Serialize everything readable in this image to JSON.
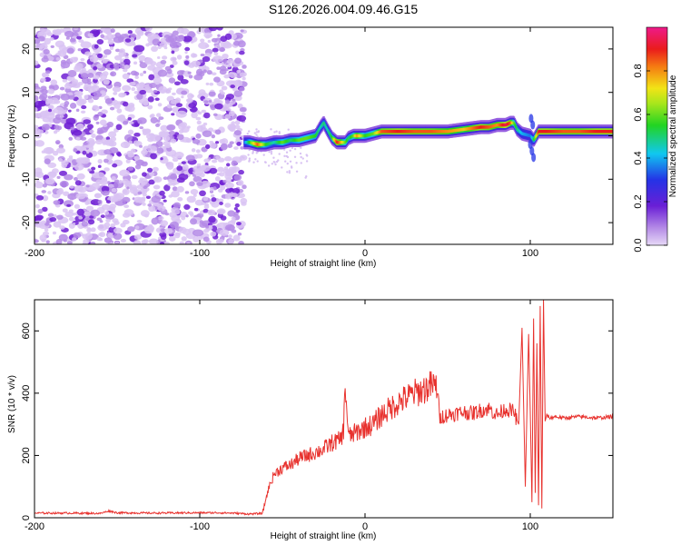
{
  "title": "S126.2026.004.09.46.G15",
  "colors": {
    "snr_line": "#e8322e",
    "waterfall_background": "#ffffff",
    "noise_light": "#d9c3f3",
    "noise_mid": "#b48ae6",
    "noise_dark": "#6f1fd3"
  },
  "chart_data": [
    {
      "id": "spectrogram",
      "type": "heatmap",
      "xlabel": "Height of straight line (km)",
      "ylabel": "Frequency (Hz)",
      "xlim": [
        -200,
        150
      ],
      "ylim": [
        -25,
        25
      ],
      "xticks": [
        -200,
        -100,
        0,
        100
      ],
      "yticks": [
        -20,
        -10,
        0,
        10,
        20
      ],
      "grid": false,
      "colorbar": {
        "label": "Normalized spectral amplitude",
        "range": [
          0,
          1
        ],
        "ticks": [
          0.0,
          0.2,
          0.4,
          0.6,
          0.8
        ],
        "colormap": "hsv-like: lilac, purple, blue, cyan, green, yellow, orange, red, magenta"
      },
      "noise_region_x": [
        -200,
        -73
      ],
      "ridge": {
        "x": [
          -73,
          -70,
          -65,
          -60,
          -55,
          -50,
          -45,
          -40,
          -35,
          -30,
          -27,
          -25,
          -23,
          -20,
          -17,
          -15,
          -12,
          -10,
          -7,
          -5,
          0,
          5,
          10,
          20,
          30,
          40,
          50,
          60,
          70,
          75,
          80,
          85,
          88,
          90,
          92,
          95,
          100,
          102,
          105,
          110,
          120,
          130,
          140,
          150
        ],
        "y": [
          -1.5,
          -1.5,
          -2,
          -2,
          -1.5,
          -1.5,
          -1,
          -1,
          -0.5,
          0,
          2,
          3,
          1.5,
          -0.5,
          -1.5,
          -1.5,
          -1.5,
          -0.5,
          0,
          0,
          0,
          0.5,
          1,
          1,
          1,
          1,
          1,
          1.5,
          2,
          2,
          2.5,
          2.5,
          3,
          3,
          1.5,
          0.5,
          0,
          -1,
          1,
          1,
          1,
          1,
          1,
          1
        ],
        "amp": [
          0.35,
          0.55,
          0.85,
          0.55,
          0.45,
          0.6,
          0.5,
          0.6,
          0.6,
          0.55,
          0.45,
          0.5,
          0.45,
          0.55,
          0.9,
          0.8,
          0.6,
          0.5,
          0.6,
          0.8,
          0.55,
          0.6,
          0.85,
          0.9,
          0.85,
          0.85,
          0.8,
          0.75,
          0.9,
          0.85,
          0.8,
          0.95,
          0.85,
          0.6,
          0.5,
          0.4,
          0.35,
          0.5,
          0.9,
          0.9,
          0.85,
          0.85,
          0.9,
          0.9
        ]
      }
    },
    {
      "id": "snr",
      "type": "line",
      "xlabel": "Height of straight line (km)",
      "ylabel": "SNR (10 * v/v)",
      "xlim": [
        -200,
        150
      ],
      "ylim": [
        0,
        700
      ],
      "xticks": [
        -200,
        -100,
        0,
        100
      ],
      "yticks": [
        0,
        200,
        400,
        600
      ],
      "grid": false,
      "series": [
        {
          "x": [
            -200,
            -180,
            -160,
            -155,
            -150,
            -130,
            -100,
            -90,
            -80,
            -70,
            -62,
            -60,
            -58,
            -55,
            -50,
            -45,
            -40,
            -35,
            -30,
            -25,
            -20,
            -15,
            -13,
            -12,
            -10,
            -5,
            0,
            5,
            10,
            15,
            20,
            25,
            30,
            35,
            40,
            44,
            45,
            46,
            50,
            55,
            60,
            65,
            70,
            75,
            80,
            85,
            90,
            93,
            95,
            97,
            99,
            100,
            101,
            102,
            103,
            104,
            105,
            106,
            107,
            108,
            109,
            110,
            112,
            115,
            120,
            130,
            140,
            150
          ],
          "y": [
            15,
            15,
            14,
            22,
            16,
            15,
            16,
            16,
            15,
            12,
            14,
            60,
            100,
            140,
            160,
            170,
            190,
            200,
            210,
            220,
            240,
            250,
            280,
            430,
            260,
            275,
            290,
            300,
            330,
            350,
            370,
            385,
            400,
            410,
            425,
            420,
            315,
            325,
            330,
            335,
            340,
            335,
            345,
            350,
            330,
            350,
            340,
            300,
            610,
            100,
            590,
            340,
            50,
            640,
            80,
            560,
            40,
            680,
            30,
            700,
            310,
            330,
            320,
            325,
            320,
            325,
            320,
            325
          ]
        }
      ]
    }
  ]
}
